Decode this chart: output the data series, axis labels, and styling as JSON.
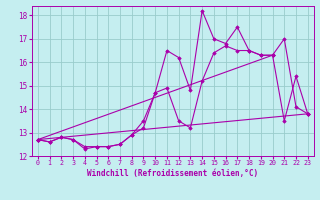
{
  "xlabel": "Windchill (Refroidissement éolien,°C)",
  "xlim": [
    -0.5,
    23.5
  ],
  "ylim": [
    12,
    18.4
  ],
  "yticks": [
    12,
    13,
    14,
    15,
    16,
    17,
    18
  ],
  "xticks": [
    0,
    1,
    2,
    3,
    4,
    5,
    6,
    7,
    8,
    9,
    10,
    11,
    12,
    13,
    14,
    15,
    16,
    17,
    18,
    19,
    20,
    21,
    22,
    23
  ],
  "background_color": "#c5eef0",
  "grid_color": "#99cccc",
  "line_color": "#aa00aa",
  "series1_x": [
    0,
    1,
    2,
    3,
    4,
    5,
    6,
    7,
    8,
    9,
    10,
    11,
    12,
    13,
    14,
    15,
    16,
    17,
    18,
    19,
    20,
    21,
    22,
    23
  ],
  "series1_y": [
    12.7,
    12.6,
    12.8,
    12.7,
    12.4,
    12.4,
    12.4,
    12.5,
    12.9,
    13.5,
    14.7,
    16.5,
    16.2,
    14.8,
    18.2,
    17.0,
    16.8,
    17.5,
    16.5,
    16.3,
    16.3,
    17.0,
    14.1,
    13.8
  ],
  "series2_x": [
    0,
    1,
    2,
    3,
    4,
    5,
    6,
    7,
    8,
    9,
    10,
    11,
    12,
    13,
    14,
    15,
    16,
    17,
    18,
    19,
    20,
    21,
    22,
    23
  ],
  "series2_y": [
    12.7,
    12.6,
    12.8,
    12.7,
    12.3,
    12.4,
    12.4,
    12.5,
    12.9,
    13.2,
    14.7,
    14.9,
    13.5,
    13.2,
    15.2,
    16.4,
    16.7,
    16.5,
    16.5,
    16.3,
    16.3,
    13.5,
    15.4,
    13.8
  ],
  "series3_x": [
    0,
    23
  ],
  "series3_y": [
    12.7,
    13.8
  ],
  "series4_x": [
    0,
    20
  ],
  "series4_y": [
    12.7,
    16.3
  ]
}
